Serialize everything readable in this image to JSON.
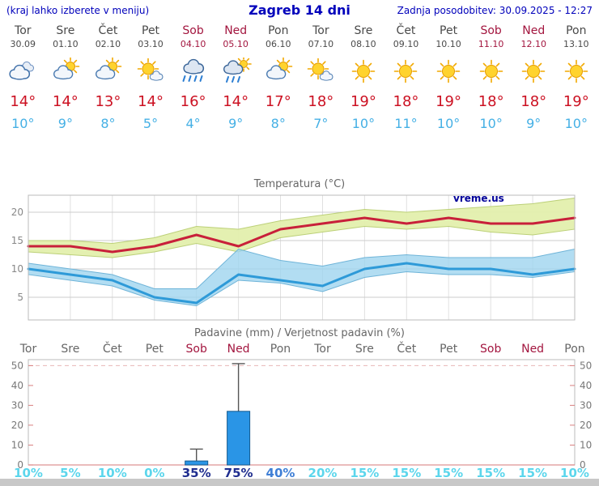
{
  "header": {
    "note": "(kraj lahko izberete v meniju)",
    "title": "Zagreb 14 dni",
    "updated": "Zadnja posodobitev: 30.09.2025 - 12:27"
  },
  "days": [
    {
      "name": "Tor",
      "date": "30.09",
      "weekend": false,
      "icon": "cloudy",
      "tmax": "14°",
      "tmin": "10°",
      "pop": "10%",
      "pop_color": "#5cd6ec"
    },
    {
      "name": "Sre",
      "date": "01.10",
      "weekend": false,
      "icon": "partly",
      "tmax": "14°",
      "tmin": "9°",
      "pop": "5%",
      "pop_color": "#5cd6ec"
    },
    {
      "name": "Čet",
      "date": "02.10",
      "weekend": false,
      "icon": "partly",
      "tmax": "13°",
      "tmin": "8°",
      "pop": "10%",
      "pop_color": "#5cd6ec"
    },
    {
      "name": "Pet",
      "date": "03.10",
      "weekend": false,
      "icon": "mostly-sunny",
      "tmax": "14°",
      "tmin": "5°",
      "pop": "0%",
      "pop_color": "#5cd6ec"
    },
    {
      "name": "Sob",
      "date": "04.10",
      "weekend": true,
      "icon": "rain",
      "tmax": "16°",
      "tmin": "4°",
      "pop": "35%",
      "pop_color": "#202e8f"
    },
    {
      "name": "Ned",
      "date": "05.10",
      "weekend": true,
      "icon": "rain-sun",
      "tmax": "14°",
      "tmin": "9°",
      "pop": "75%",
      "pop_color": "#202e8f"
    },
    {
      "name": "Pon",
      "date": "06.10",
      "weekend": false,
      "icon": "partly",
      "tmax": "17°",
      "tmin": "8°",
      "pop": "40%",
      "pop_color": "#3f7fd6"
    },
    {
      "name": "Tor",
      "date": "07.10",
      "weekend": false,
      "icon": "mostly-sunny",
      "tmax": "18°",
      "tmin": "7°",
      "pop": "20%",
      "pop_color": "#5cd6ec"
    },
    {
      "name": "Sre",
      "date": "08.10",
      "weekend": false,
      "icon": "sunny",
      "tmax": "19°",
      "tmin": "10°",
      "pop": "15%",
      "pop_color": "#5cd6ec"
    },
    {
      "name": "Čet",
      "date": "09.10",
      "weekend": false,
      "icon": "sunny",
      "tmax": "18°",
      "tmin": "11°",
      "pop": "15%",
      "pop_color": "#5cd6ec"
    },
    {
      "name": "Pet",
      "date": "10.10",
      "weekend": false,
      "icon": "sunny",
      "tmax": "19°",
      "tmin": "10°",
      "pop": "15%",
      "pop_color": "#5cd6ec"
    },
    {
      "name": "Sob",
      "date": "11.10",
      "weekend": true,
      "icon": "sunny",
      "tmax": "18°",
      "tmin": "10°",
      "pop": "15%",
      "pop_color": "#5cd6ec"
    },
    {
      "name": "Ned",
      "date": "12.10",
      "weekend": true,
      "icon": "sunny",
      "tmax": "18°",
      "tmin": "9°",
      "pop": "15%",
      "pop_color": "#5cd6ec"
    },
    {
      "name": "Pon",
      "date": "13.10",
      "weekend": false,
      "icon": "sunny",
      "tmax": "19°",
      "tmin": "10°",
      "pop": "10%",
      "pop_color": "#5cd6ec"
    }
  ],
  "chart_data": [
    {
      "type": "line",
      "title": "Temperatura (°C)",
      "watermark": "vreme.us",
      "x": [
        "30.09",
        "01.10",
        "02.10",
        "03.10",
        "04.10",
        "05.10",
        "06.10",
        "07.10",
        "08.10",
        "09.10",
        "10.10",
        "11.10",
        "12.10",
        "13.10"
      ],
      "ylim": [
        1,
        23
      ],
      "yticks": [
        5,
        10,
        15,
        20
      ],
      "series": [
        {
          "name": "tmax",
          "color": "#c8203a",
          "values": [
            14,
            14,
            13,
            14,
            16,
            14,
            17,
            18,
            19,
            18,
            19,
            18,
            18,
            19
          ]
        },
        {
          "name": "tmin",
          "color": "#2e9ad8",
          "values": [
            10,
            9,
            8,
            5,
            4,
            9,
            8,
            7,
            10,
            11,
            10,
            10,
            9,
            10
          ]
        },
        {
          "name": "tmax_band_upper",
          "values": [
            15,
            15,
            14.5,
            15.5,
            17.5,
            17,
            18.5,
            19.5,
            20.5,
            20,
            20.5,
            21,
            21.5,
            22.5
          ]
        },
        {
          "name": "tmax_band_lower",
          "values": [
            13,
            12.5,
            12,
            13,
            14.5,
            13,
            15.5,
            16.5,
            17.5,
            17,
            17.5,
            16.5,
            16,
            17
          ]
        },
        {
          "name": "tmin_band_upper",
          "values": [
            11,
            10,
            9,
            6.5,
            6.5,
            13.5,
            11.5,
            10.5,
            12,
            12.5,
            12,
            12,
            12,
            13.5
          ]
        },
        {
          "name": "tmin_band_lower",
          "values": [
            9,
            8,
            7,
            4.5,
            3.5,
            8,
            7.5,
            6,
            8.5,
            9.5,
            9,
            9,
            8.5,
            9.5
          ]
        }
      ]
    },
    {
      "type": "bar",
      "title": "Padavine (mm) / Verjetnost padavin (%)",
      "categories": [
        "Tor",
        "Sre",
        "Čet",
        "Pet",
        "Sob",
        "Ned",
        "Pon",
        "Tor",
        "Sre",
        "Čet",
        "Pet",
        "Sob",
        "Ned",
        "Pon"
      ],
      "values": [
        0,
        0,
        0,
        0,
        2,
        27,
        0,
        0,
        0,
        0,
        0,
        0,
        0,
        0
      ],
      "max_values": [
        0,
        0,
        0,
        0,
        8,
        51,
        0,
        0,
        0,
        0,
        0,
        0,
        0,
        0
      ],
      "pop": [
        "10%",
        "5%",
        "10%",
        "0%",
        "35%",
        "75%",
        "40%",
        "20%",
        "15%",
        "15%",
        "15%",
        "15%",
        "15%",
        "10%"
      ],
      "ylim": [
        0,
        53
      ],
      "yticks": [
        0,
        10,
        20,
        30,
        40,
        50
      ]
    }
  ],
  "colors": {
    "header_blue": "#0000bb",
    "weekend_red": "#a3163f",
    "weekday_gray": "#666666",
    "temp_max_red": "#c8203a",
    "temp_min_blue": "#2e9ad8",
    "band_high_fill": "#e3efad",
    "band_high_edge": "#bcd078",
    "band_low_fill": "#9fd4ef",
    "band_low_edge": "#6fb4d8",
    "bar_fill": "#2a95e6",
    "bar_edge": "#155a8e",
    "watermark_blue": "#000099"
  }
}
